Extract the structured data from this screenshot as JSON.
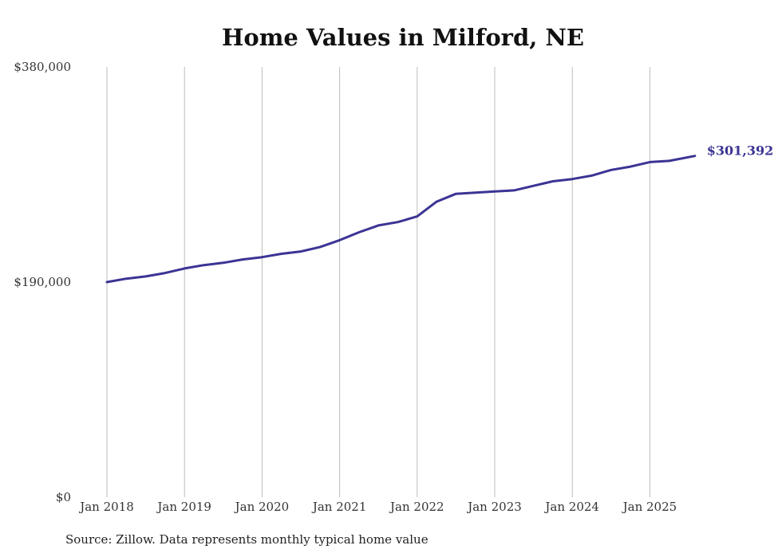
{
  "chart_data": {
    "type": "line",
    "title": "Home Values in Milford, NE",
    "source": "Source: Zillow. Data represents monthly typical home value",
    "ylim": [
      0,
      380000
    ],
    "y_ticks": [
      {
        "value": 0,
        "label": "$0"
      },
      {
        "value": 190000,
        "label": "$190,000"
      },
      {
        "value": 380000,
        "label": "$380,000"
      }
    ],
    "x_ticks": [
      {
        "value": 2018.0,
        "label": "Jan 2018"
      },
      {
        "value": 2019.0,
        "label": "Jan 2019"
      },
      {
        "value": 2020.0,
        "label": "Jan 2020"
      },
      {
        "value": 2021.0,
        "label": "Jan 2021"
      },
      {
        "value": 2022.0,
        "label": "Jan 2022"
      },
      {
        "value": 2023.0,
        "label": "Jan 2023"
      },
      {
        "value": 2024.0,
        "label": "Jan 2024"
      },
      {
        "value": 2025.0,
        "label": "Jan 2025"
      }
    ],
    "grid": "vertical",
    "line_color": "#3b3494",
    "end_label": "$301,392",
    "series": [
      {
        "x": [
          2018.0,
          2018.25,
          2018.5,
          2018.75,
          2019.0,
          2019.25,
          2019.5,
          2019.75,
          2020.0,
          2020.25,
          2020.5,
          2020.75,
          2021.0,
          2021.25,
          2021.5,
          2021.75,
          2022.0,
          2022.25,
          2022.5,
          2022.75,
          2023.0,
          2023.25,
          2023.5,
          2023.75,
          2024.0,
          2024.25,
          2024.5,
          2024.75,
          2025.0,
          2025.25,
          2025.58
        ],
        "y": [
          190000,
          193000,
          195000,
          198000,
          202000,
          205000,
          207000,
          210000,
          212000,
          215000,
          217000,
          221000,
          227000,
          234000,
          240000,
          243000,
          248000,
          261000,
          268000,
          269000,
          270000,
          271000,
          275000,
          279000,
          281000,
          284000,
          289000,
          292000,
          296000,
          297000,
          301392
        ]
      }
    ]
  }
}
